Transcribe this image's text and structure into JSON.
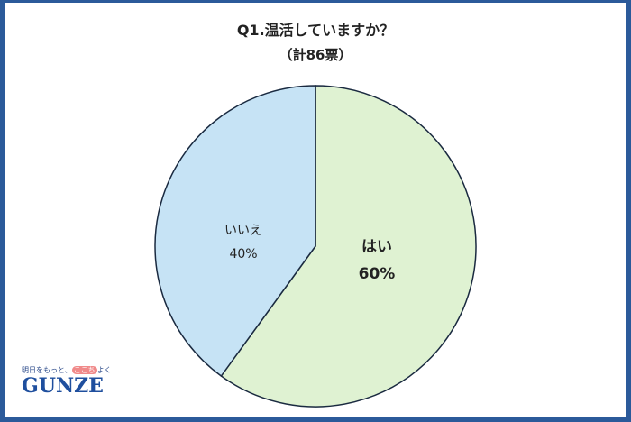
{
  "chart_data": {
    "type": "pie",
    "title": "Q1.温活していますか？",
    "subtitle": "（計86票）",
    "slices": [
      {
        "label": "はい",
        "value": 60,
        "value_label": "60%",
        "color": "#dff2d2"
      },
      {
        "label": "いいえ",
        "value": 40,
        "value_label": "40%",
        "color": "#c6e3f5"
      }
    ],
    "start": "top",
    "direction": "clockwise",
    "legend": "none"
  },
  "logo": {
    "tagline_pre": "明日をもっと、",
    "tagline_highlight": "ここち",
    "tagline_post": "よく",
    "brand": "GUNZE"
  },
  "colors": {
    "frame": "#2b5a9a",
    "outline": "#1a2a40"
  }
}
